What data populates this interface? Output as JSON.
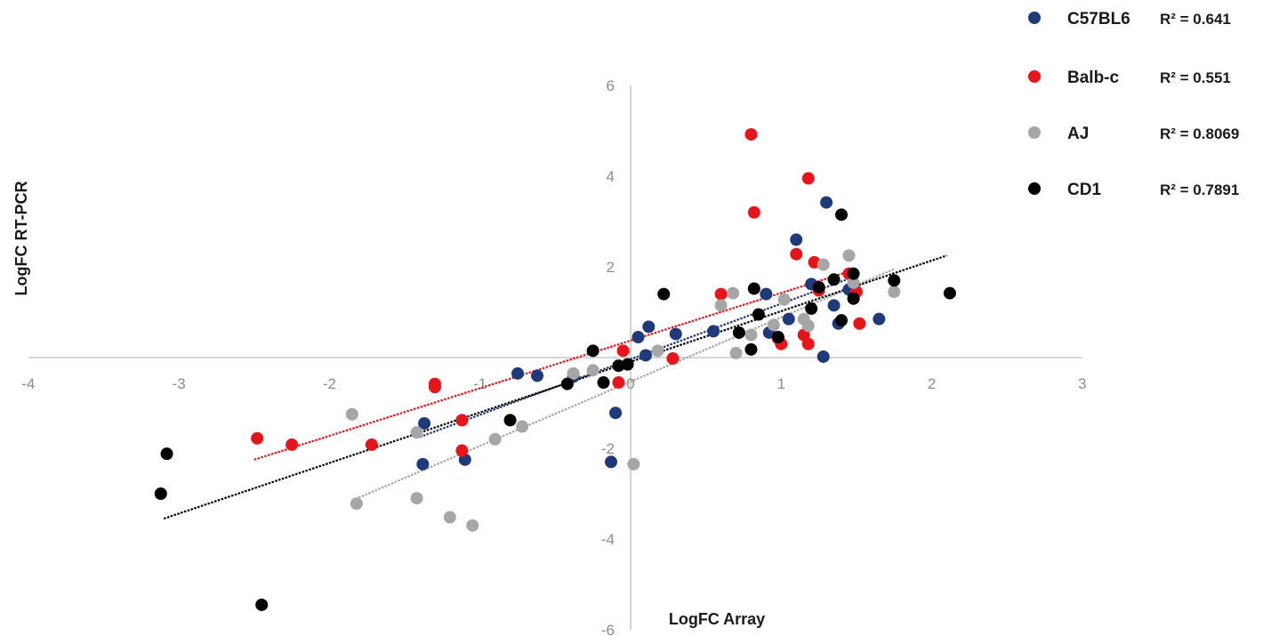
{
  "chart_data": {
    "type": "scatter",
    "title": "",
    "xlabel": "LogFC Array",
    "ylabel": "LogFC RT-PCR",
    "xlim": [
      -4,
      3
    ],
    "ylim": [
      -6,
      6
    ],
    "x_ticks": [
      -4,
      -3,
      -2,
      -1,
      0,
      1,
      2,
      3
    ],
    "y_ticks": [
      -6,
      -4,
      -2,
      2,
      4,
      6
    ],
    "x_tick_labels": [
      "-4",
      "-3",
      "-2",
      "-1",
      "0",
      "1",
      "2",
      "3"
    ],
    "y_tick_labels": [
      "-6",
      "-4",
      "-2",
      "2",
      "4",
      "6"
    ],
    "grid": false,
    "legend_position": "top-right",
    "trendlines": true,
    "series": [
      {
        "name": "C57BL6",
        "color": "#1f3a7a",
        "r2_label": "R² = 0.641",
        "trend": {
          "x": [
            -1.4,
            1.5
          ],
          "y": [
            -1.75,
            1.8
          ]
        },
        "points": [
          [
            -0.75,
            -0.35
          ],
          [
            -0.62,
            -0.4
          ],
          [
            -0.38,
            -0.42
          ],
          [
            0.05,
            0.45
          ],
          [
            0.12,
            0.68
          ],
          [
            0.3,
            0.52
          ],
          [
            0.55,
            0.58
          ],
          [
            -1.37,
            -1.45
          ],
          [
            -1.38,
            -2.35
          ],
          [
            -1.1,
            -2.25
          ],
          [
            -0.13,
            -2.3
          ],
          [
            -0.1,
            -1.22
          ],
          [
            0.1,
            0.05
          ],
          [
            0.9,
            1.4
          ],
          [
            0.92,
            0.55
          ],
          [
            1.1,
            2.6
          ],
          [
            1.3,
            3.42
          ],
          [
            1.28,
            0.02
          ],
          [
            1.2,
            1.62
          ],
          [
            1.35,
            1.15
          ],
          [
            1.45,
            1.5
          ],
          [
            1.38,
            0.75
          ],
          [
            1.65,
            0.85
          ],
          [
            1.05,
            0.85
          ]
        ]
      },
      {
        "name": "Balb-c",
        "color": "#e8141b",
        "r2_label": "R² = 0.551",
        "trend": {
          "x": [
            -2.5,
            1.5
          ],
          "y": [
            -2.25,
            1.95
          ]
        },
        "points": [
          [
            -2.48,
            -1.78
          ],
          [
            -2.25,
            -1.92
          ],
          [
            -1.72,
            -1.92
          ],
          [
            -1.3,
            -0.58
          ],
          [
            -1.3,
            -0.65
          ],
          [
            -1.12,
            -1.38
          ],
          [
            -1.12,
            -2.05
          ],
          [
            -0.05,
            0.15
          ],
          [
            -0.08,
            -0.55
          ],
          [
            0.28,
            -0.02
          ],
          [
            0.6,
            1.4
          ],
          [
            0.8,
            4.92
          ],
          [
            0.82,
            3.2
          ],
          [
            1.0,
            0.3
          ],
          [
            1.1,
            2.28
          ],
          [
            1.18,
            3.95
          ],
          [
            1.22,
            2.1
          ],
          [
            1.15,
            0.5
          ],
          [
            1.18,
            0.3
          ],
          [
            1.25,
            1.48
          ],
          [
            1.45,
            1.85
          ],
          [
            1.5,
            1.45
          ],
          [
            1.52,
            0.75
          ],
          [
            0.98,
            0.42
          ]
        ]
      },
      {
        "name": "AJ",
        "color": "#a6a6a6",
        "r2_label": "R² = 0.8069",
        "trend": {
          "x": [
            -1.85,
            1.75
          ],
          "y": [
            -3.15,
            1.95
          ]
        },
        "points": [
          [
            -1.85,
            -1.25
          ],
          [
            -1.42,
            -1.65
          ],
          [
            -1.82,
            -3.22
          ],
          [
            -1.42,
            -3.1
          ],
          [
            -1.2,
            -3.52
          ],
          [
            -1.05,
            -3.7
          ],
          [
            -0.9,
            -1.8
          ],
          [
            -0.72,
            -1.52
          ],
          [
            -0.38,
            -0.35
          ],
          [
            -0.25,
            -0.28
          ],
          [
            0.02,
            -2.35
          ],
          [
            0.18,
            0.15
          ],
          [
            0.6,
            1.15
          ],
          [
            0.68,
            1.42
          ],
          [
            0.7,
            0.1
          ],
          [
            0.8,
            0.5
          ],
          [
            0.95,
            0.72
          ],
          [
            1.02,
            1.28
          ],
          [
            1.18,
            0.7
          ],
          [
            1.28,
            2.05
          ],
          [
            1.45,
            2.25
          ],
          [
            1.48,
            1.65
          ],
          [
            1.75,
            1.45
          ],
          [
            1.15,
            0.85
          ]
        ]
      },
      {
        "name": "CD1",
        "color": "#000000",
        "r2_label": "R² = 0.7891",
        "trend": {
          "x": [
            -3.1,
            2.1
          ],
          "y": [
            -3.55,
            2.25
          ]
        },
        "points": [
          [
            -3.12,
            -3.0
          ],
          [
            -3.08,
            -2.12
          ],
          [
            -2.45,
            -5.45
          ],
          [
            -0.8,
            -1.38
          ],
          [
            -0.42,
            -0.58
          ],
          [
            -0.25,
            0.15
          ],
          [
            -0.18,
            -0.55
          ],
          [
            -0.08,
            -0.18
          ],
          [
            -0.02,
            -0.15
          ],
          [
            0.22,
            1.4
          ],
          [
            0.72,
            0.55
          ],
          [
            0.8,
            0.18
          ],
          [
            0.85,
            0.95
          ],
          [
            0.82,
            1.52
          ],
          [
            0.98,
            0.45
          ],
          [
            1.2,
            1.08
          ],
          [
            1.25,
            1.55
          ],
          [
            1.35,
            1.72
          ],
          [
            1.4,
            0.82
          ],
          [
            1.4,
            3.15
          ],
          [
            1.48,
            1.3
          ],
          [
            1.48,
            1.85
          ],
          [
            1.75,
            1.7
          ],
          [
            2.12,
            1.42
          ]
        ]
      }
    ]
  },
  "legend": [
    {
      "name": "C57BL6",
      "r2": "R² = 0.641",
      "color": "#1f3a7a"
    },
    {
      "name": "Balb-c",
      "r2": "R² = 0.551",
      "color": "#e8141b"
    },
    {
      "name": "AJ",
      "r2": "R² = 0.8069",
      "color": "#a6a6a6"
    },
    {
      "name": "CD1",
      "r2": "R² = 0.7891",
      "color": "#000000"
    }
  ]
}
